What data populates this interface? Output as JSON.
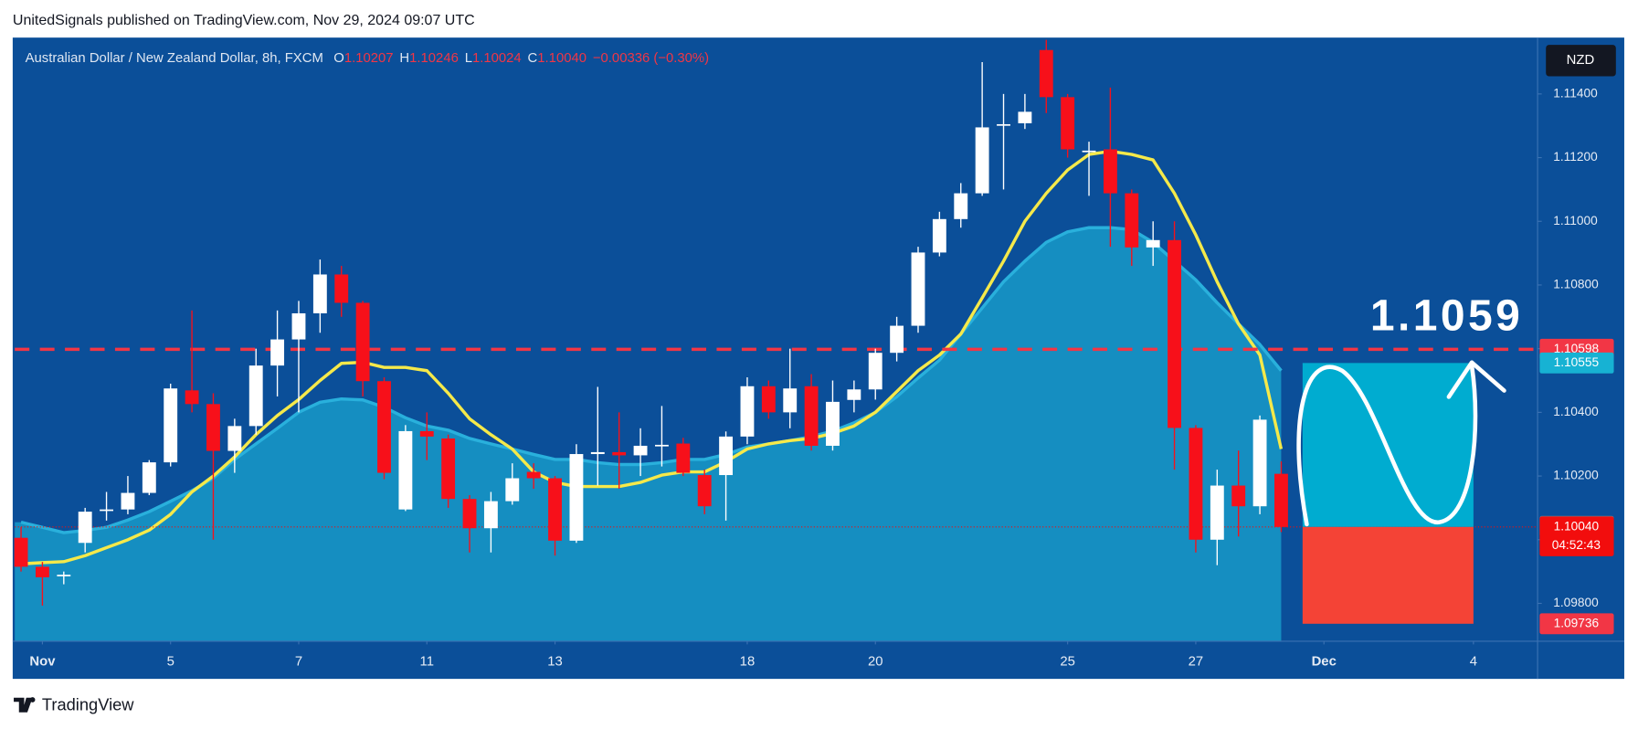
{
  "header": {
    "text": "UnitedSignals published on TradingView.com, Nov 29, 2024 09:07 UTC"
  },
  "footer": {
    "brand": "TradingView"
  },
  "chart_data": {
    "type": "candlestick",
    "legend": {
      "title": "Australian Dollar / New Zealand Dollar, 8h, FXCM",
      "fields": [
        {
          "key": "O",
          "label": "1.10207"
        },
        {
          "key": "H",
          "label": "1.10246"
        },
        {
          "key": "L",
          "label": "1.10024"
        },
        {
          "key": "C",
          "label": "1.10040"
        }
      ],
      "change": "−0.00336 (−0.30%)"
    },
    "currency": "NZD",
    "up_color": "#ffffff",
    "down_color": "#f7101a",
    "open": [
      1.10006,
      1.09915,
      1.09885,
      1.0999,
      1.10092,
      1.10095,
      1.10147,
      1.10243,
      1.10469,
      1.10426,
      1.10279,
      1.10357,
      1.10547,
      1.10629,
      1.10711,
      1.10833,
      1.10744,
      1.10498,
      1.10095,
      1.10341,
      1.10318,
      1.10128,
      1.10036,
      1.10121,
      1.10213,
      1.10193,
      1.09997,
      1.10269,
      1.10275,
      1.10265,
      1.10295,
      1.10302,
      1.10203,
      1.10203,
      1.10324,
      1.10482,
      1.104,
      1.10482,
      1.10295,
      1.10439,
      1.10472,
      1.10587,
      1.10672,
      1.10902,
      1.11007,
      1.11088,
      1.11302,
      1.11308,
      1.11538,
      1.1139,
      1.1122,
      1.11226,
      1.11088,
      1.10918,
      1.10941,
      1.10351,
      1.1,
      1.1017,
      1.10105,
      1.10207
    ],
    "high": [
      1.1004,
      1.0993,
      1.099,
      1.101,
      1.1015,
      1.102,
      1.1025,
      1.1049,
      1.1072,
      1.1046,
      1.1038,
      1.106,
      1.1072,
      1.1075,
      1.1088,
      1.1086,
      1.1075,
      1.1051,
      1.1036,
      1.104,
      1.1033,
      1.1014,
      1.1015,
      1.1024,
      1.1024,
      1.102,
      1.103,
      1.1048,
      1.104,
      1.1035,
      1.1042,
      1.1032,
      1.1022,
      1.1034,
      1.1051,
      1.105,
      1.106,
      1.1052,
      1.105,
      1.105,
      1.106,
      1.107,
      1.1092,
      1.1103,
      1.1112,
      1.115,
      1.114,
      1.114,
      1.1157,
      1.114,
      1.1125,
      1.1142,
      1.111,
      1.11,
      1.11,
      1.1036,
      1.1022,
      1.1028,
      1.1039,
      1.10246
    ],
    "low": [
      1.099,
      1.09793,
      1.0986,
      1.0996,
      1.1006,
      1.1008,
      1.1014,
      1.1023,
      1.104,
      1.1,
      1.1021,
      1.1033,
      1.1045,
      1.104,
      1.1065,
      1.107,
      1.1045,
      1.1019,
      1.1009,
      1.1025,
      1.101,
      1.0996,
      1.0996,
      1.1011,
      1.1016,
      1.0995,
      1.0999,
      1.1017,
      1.1016,
      1.102,
      1.1023,
      1.102,
      1.1008,
      1.1006,
      1.103,
      1.1038,
      1.1035,
      1.1028,
      1.1028,
      1.104,
      1.1044,
      1.1056,
      1.1065,
      1.1089,
      1.1098,
      1.1108,
      1.111,
      1.1129,
      1.1134,
      1.112,
      1.1108,
      1.1092,
      1.1086,
      1.1086,
      1.1022,
      1.0996,
      1.0992,
      1.1001,
      1.1008,
      1.10024
    ],
    "close": [
      1.09915,
      1.09882,
      1.0989,
      1.10088,
      1.10095,
      1.10147,
      1.10243,
      1.10475,
      1.10426,
      1.10279,
      1.10357,
      1.10547,
      1.10629,
      1.10711,
      1.10833,
      1.10744,
      1.10498,
      1.1021,
      1.10341,
      1.10324,
      1.10128,
      1.10036,
      1.10121,
      1.10193,
      1.10193,
      1.09997,
      1.10269,
      1.10275,
      1.10265,
      1.10295,
      1.10298,
      1.1021,
      1.10105,
      1.10324,
      1.10482,
      1.104,
      1.10475,
      1.10295,
      1.10433,
      1.10472,
      1.10587,
      1.10672,
      1.10902,
      1.11007,
      1.11088,
      1.11295,
      1.11305,
      1.11344,
      1.1139,
      1.11226,
      1.11222,
      1.11088,
      1.10918,
      1.10941,
      1.10351,
      1.1,
      1.1017,
      1.10105,
      1.10377,
      1.1004
    ],
    "overlays": [
      {
        "color": "#29b0dc",
        "fill": "#1aa3cf",
        "values": [
          1.10055,
          1.10039,
          1.10022,
          1.10029,
          1.10039,
          1.10062,
          1.10088,
          1.10121,
          1.10154,
          1.10193,
          1.10252,
          1.10301,
          1.1035,
          1.104,
          1.10432,
          1.10442,
          1.10439,
          1.10416,
          1.10383,
          1.10357,
          1.10344,
          1.10318,
          1.10301,
          1.10285,
          1.10268,
          1.10252,
          1.10252,
          1.10242,
          1.10236,
          1.10236,
          1.10242,
          1.10252,
          1.10252,
          1.10268,
          1.10291,
          1.10301,
          1.10311,
          1.10324,
          1.10341,
          1.10367,
          1.104,
          1.10449,
          1.10508,
          1.10564,
          1.10646,
          1.10728,
          1.1081,
          1.10875,
          1.10934,
          1.10967,
          1.1098,
          1.1098,
          1.10974,
          1.10934,
          1.10875,
          1.10816,
          1.10744,
          1.10678,
          1.10613,
          1.10531
        ]
      },
      {
        "color": "#f5e94a",
        "values": [
          1.09924,
          1.09928,
          1.09931,
          1.0995,
          1.09975,
          1.1,
          1.1003,
          1.1008,
          1.1015,
          1.102,
          1.1026,
          1.1033,
          1.1039,
          1.1044,
          1.105,
          1.10554,
          1.10557,
          1.10541,
          1.10541,
          1.10531,
          1.1046,
          1.1038,
          1.1033,
          1.10285,
          1.10213,
          1.1018,
          1.10167,
          1.10167,
          1.10167,
          1.1018,
          1.10203,
          1.10213,
          1.10213,
          1.10245,
          1.10285,
          1.10301,
          1.10311,
          1.10318,
          1.10334,
          1.10357,
          1.104,
          1.10465,
          1.10531,
          1.1058,
          1.10646,
          1.1076,
          1.10875,
          1.11,
          1.11088,
          1.11161,
          1.1121,
          1.1122,
          1.1121,
          1.11193,
          1.11088,
          1.10957,
          1.1081,
          1.10678,
          1.1058,
          1.10285
        ]
      }
    ],
    "ylim": [
      1.09681,
      1.11577
    ],
    "yticks": [
      {
        "value": 1.098,
        "label": "1.09800"
      },
      {
        "value": 1.1,
        "label": "1.10000"
      },
      {
        "value": 1.102,
        "label": "1.10200"
      },
      {
        "value": 1.104,
        "label": "1.10400"
      },
      {
        "value": 1.106,
        "label": "1.10600"
      },
      {
        "value": 1.108,
        "label": "1.10800"
      },
      {
        "value": 1.11,
        "label": "1.11000"
      },
      {
        "value": 1.112,
        "label": "1.11200"
      },
      {
        "value": 1.114,
        "label": "1.11400"
      }
    ],
    "xticks": [
      {
        "value": 1,
        "label": "Nov"
      },
      {
        "value": 7,
        "label": "5"
      },
      {
        "value": 13,
        "label": "7"
      },
      {
        "value": 19,
        "label": "11"
      },
      {
        "value": 25,
        "label": "13"
      },
      {
        "value": 34,
        "label": "18"
      },
      {
        "value": 40,
        "label": "20"
      },
      {
        "value": 49,
        "label": "25"
      },
      {
        "value": 55,
        "label": "27"
      },
      {
        "value": 61,
        "label": "Dec"
      },
      {
        "value": 68,
        "label": "4"
      }
    ],
    "price_labels": [
      {
        "value": 1.10598,
        "label": "1.10598",
        "color": "#f23645"
      },
      {
        "value": 1.10555,
        "label": "1.10555",
        "color": "#17b2d3"
      },
      {
        "value": 1.10042,
        "label": "1.10042",
        "color": "#787b86"
      },
      {
        "value": 1.1004,
        "label": "1.10040",
        "color": "#f20d0d",
        "countdown": "04:52:43"
      },
      {
        "value": 1.09736,
        "label": "1.09736",
        "color": "#f23645"
      }
    ],
    "position": {
      "x_range": [
        60,
        68
      ],
      "target_color": "#00acd0",
      "stop_color": "#f44336"
    },
    "annotation": "1.1059"
  }
}
